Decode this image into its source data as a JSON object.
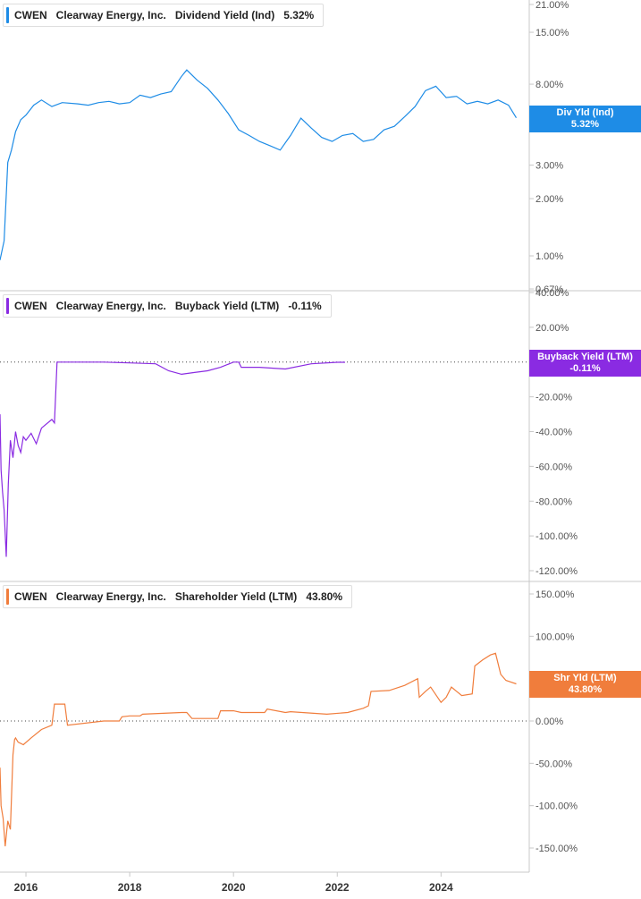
{
  "ticker": "CWEN",
  "company": "Clearway Energy, Inc.",
  "x_axis": {
    "ticks": [
      {
        "label": "2016",
        "x": 2016.0
      },
      {
        "label": "2018",
        "x": 2018.0
      },
      {
        "label": "2020",
        "x": 2020.0
      },
      {
        "label": "2022",
        "x": 2022.0
      },
      {
        "label": "2024",
        "x": 2024.0
      }
    ]
  },
  "panels": [
    {
      "metric": "Dividend Yield (Ind)",
      "value": "5.32%",
      "tag_label": "Div Yld (Ind)",
      "tag_value": "5.32%",
      "color": "#1e8ce6"
    },
    {
      "metric": "Buyback Yield (LTM)",
      "value": "-0.11%",
      "tag_label": "Buyback Yield (LTM)",
      "tag_value": "-0.11%",
      "color": "#8a2be2"
    },
    {
      "metric": "Shareholder Yield (LTM)",
      "value": "43.80%",
      "tag_label": "Shr Yld (LTM)",
      "tag_value": "43.80%",
      "color": "#f07d3c"
    }
  ],
  "chart_data": [
    {
      "type": "line",
      "title": "CWEN Clearway Energy, Inc. Dividend Yield (Ind) 5.32%",
      "scale": "log",
      "ylim": [
        0.67,
        21.0
      ],
      "y_ticks": [
        "21.00%",
        "15.00%",
        "8.00%",
        "3.00%",
        "2.00%",
        "1.00%",
        "0.67%"
      ],
      "y_tick_values": [
        21,
        15,
        8,
        3,
        2,
        1,
        0.67
      ],
      "partially_hidden_tick": "6.00%",
      "series": [
        {
          "name": "Dividend Yield (Ind)",
          "x": [
            2015.5,
            2015.58,
            2015.65,
            2015.72,
            2015.8,
            2015.9,
            2016.0,
            2016.15,
            2016.3,
            2016.5,
            2016.7,
            2017.0,
            2017.2,
            2017.4,
            2017.6,
            2017.8,
            2018.0,
            2018.2,
            2018.4,
            2018.6,
            2018.8,
            2019.0,
            2019.1,
            2019.3,
            2019.5,
            2019.7,
            2019.9,
            2020.1,
            2020.3,
            2020.5,
            2020.7,
            2020.9,
            2021.1,
            2021.3,
            2021.5,
            2021.7,
            2021.9,
            2022.1,
            2022.3,
            2022.5,
            2022.7,
            2022.9,
            2023.1,
            2023.3,
            2023.5,
            2023.7,
            2023.9,
            2024.1,
            2024.3,
            2024.5,
            2024.7,
            2024.9,
            2025.1,
            2025.3,
            2025.45
          ],
          "y": [
            0.95,
            1.2,
            3.1,
            3.6,
            4.5,
            5.2,
            5.5,
            6.2,
            6.6,
            6.1,
            6.4,
            6.3,
            6.2,
            6.4,
            6.5,
            6.3,
            6.4,
            7.0,
            6.8,
            7.1,
            7.3,
            8.8,
            9.5,
            8.4,
            7.6,
            6.6,
            5.6,
            4.6,
            4.3,
            4.0,
            3.8,
            3.6,
            4.3,
            5.3,
            4.7,
            4.2,
            4.0,
            4.3,
            4.4,
            4.0,
            4.1,
            4.6,
            4.8,
            5.4,
            6.1,
            7.4,
            7.8,
            6.8,
            6.9,
            6.3,
            6.5,
            6.3,
            6.6,
            6.2,
            5.32
          ]
        }
      ]
    },
    {
      "type": "line",
      "title": "CWEN Clearway Energy, Inc. Buyback Yield (LTM) -0.11%",
      "ylim": [
        -120,
        40
      ],
      "y_ticks": [
        "40.00%",
        "20.00%",
        "-20.00%",
        "-40.00%",
        "-60.00%",
        "-80.00%",
        "-100.00%",
        "-120.00%"
      ],
      "y_tick_values": [
        40,
        20,
        -20,
        -40,
        -60,
        -80,
        -100,
        -120
      ],
      "reference_line": 0,
      "series": [
        {
          "name": "Buyback Yield (LTM)",
          "x": [
            2015.5,
            2015.52,
            2015.55,
            2015.58,
            2015.62,
            2015.66,
            2015.7,
            2015.75,
            2015.8,
            2015.85,
            2015.9,
            2015.95,
            2016.0,
            2016.1,
            2016.2,
            2016.3,
            2016.5,
            2016.55,
            2016.6,
            2016.65,
            2017.0,
            2017.5,
            2018.0,
            2018.5,
            2018.75,
            2019.0,
            2019.25,
            2019.5,
            2019.75,
            2020.0,
            2020.1,
            2020.15,
            2020.5,
            2021.0,
            2021.5,
            2022.0,
            2022.15
          ],
          "y": [
            -30,
            -62,
            -75,
            -85,
            -112,
            -70,
            -45,
            -55,
            -40,
            -48,
            -52,
            -43,
            -45,
            -41,
            -47,
            -38,
            -33,
            -35,
            0,
            0,
            0,
            0,
            -0.5,
            -1,
            -5,
            -7,
            -6,
            -5,
            -3,
            0,
            0,
            -3,
            -3,
            -4,
            -1,
            -0.11,
            -0.11
          ]
        }
      ]
    },
    {
      "type": "line",
      "title": "CWEN Clearway Energy, Inc. Shareholder Yield (LTM) 43.80%",
      "ylim": [
        -150,
        150
      ],
      "y_ticks": [
        "150.00%",
        "100.00%",
        "0.00%",
        "-50.00%",
        "-100.00%",
        "-150.00%"
      ],
      "y_tick_values": [
        150,
        100,
        0,
        -50,
        -100,
        -150
      ],
      "partially_hidden_tick": "50.00%",
      "reference_line": 0,
      "series": [
        {
          "name": "Shareholder Yield (LTM)",
          "x": [
            2015.5,
            2015.52,
            2015.56,
            2015.6,
            2015.65,
            2015.7,
            2015.75,
            2015.78,
            2015.8,
            2015.85,
            2015.95,
            2016.1,
            2016.3,
            2016.5,
            2016.55,
            2016.75,
            2016.8,
            2017.5,
            2017.8,
            2017.85,
            2018.0,
            2018.2,
            2018.25,
            2019.0,
            2019.1,
            2019.2,
            2019.7,
            2019.75,
            2020.0,
            2020.15,
            2020.2,
            2020.6,
            2020.65,
            2021.0,
            2021.1,
            2021.8,
            2022.2,
            2022.5,
            2022.6,
            2022.65,
            2023.0,
            2023.3,
            2023.55,
            2023.58,
            2023.7,
            2023.8,
            2024.0,
            2024.1,
            2024.2,
            2024.4,
            2024.6,
            2024.65,
            2024.8,
            2024.95,
            2025.05,
            2025.15,
            2025.25,
            2025.45
          ],
          "y": [
            -55,
            -100,
            -115,
            -148,
            -118,
            -128,
            -40,
            -22,
            -20,
            -25,
            -28,
            -20,
            -10,
            -5,
            20,
            20,
            -5,
            0,
            0,
            5,
            6,
            6,
            8,
            10,
            10,
            3,
            3,
            12,
            12,
            10,
            10,
            10,
            14,
            10,
            11,
            8,
            10,
            15,
            18,
            35,
            36,
            42,
            50,
            28,
            35,
            40,
            22,
            28,
            40,
            30,
            32,
            65,
            72,
            78,
            80,
            55,
            48,
            43.8
          ]
        }
      ]
    }
  ]
}
